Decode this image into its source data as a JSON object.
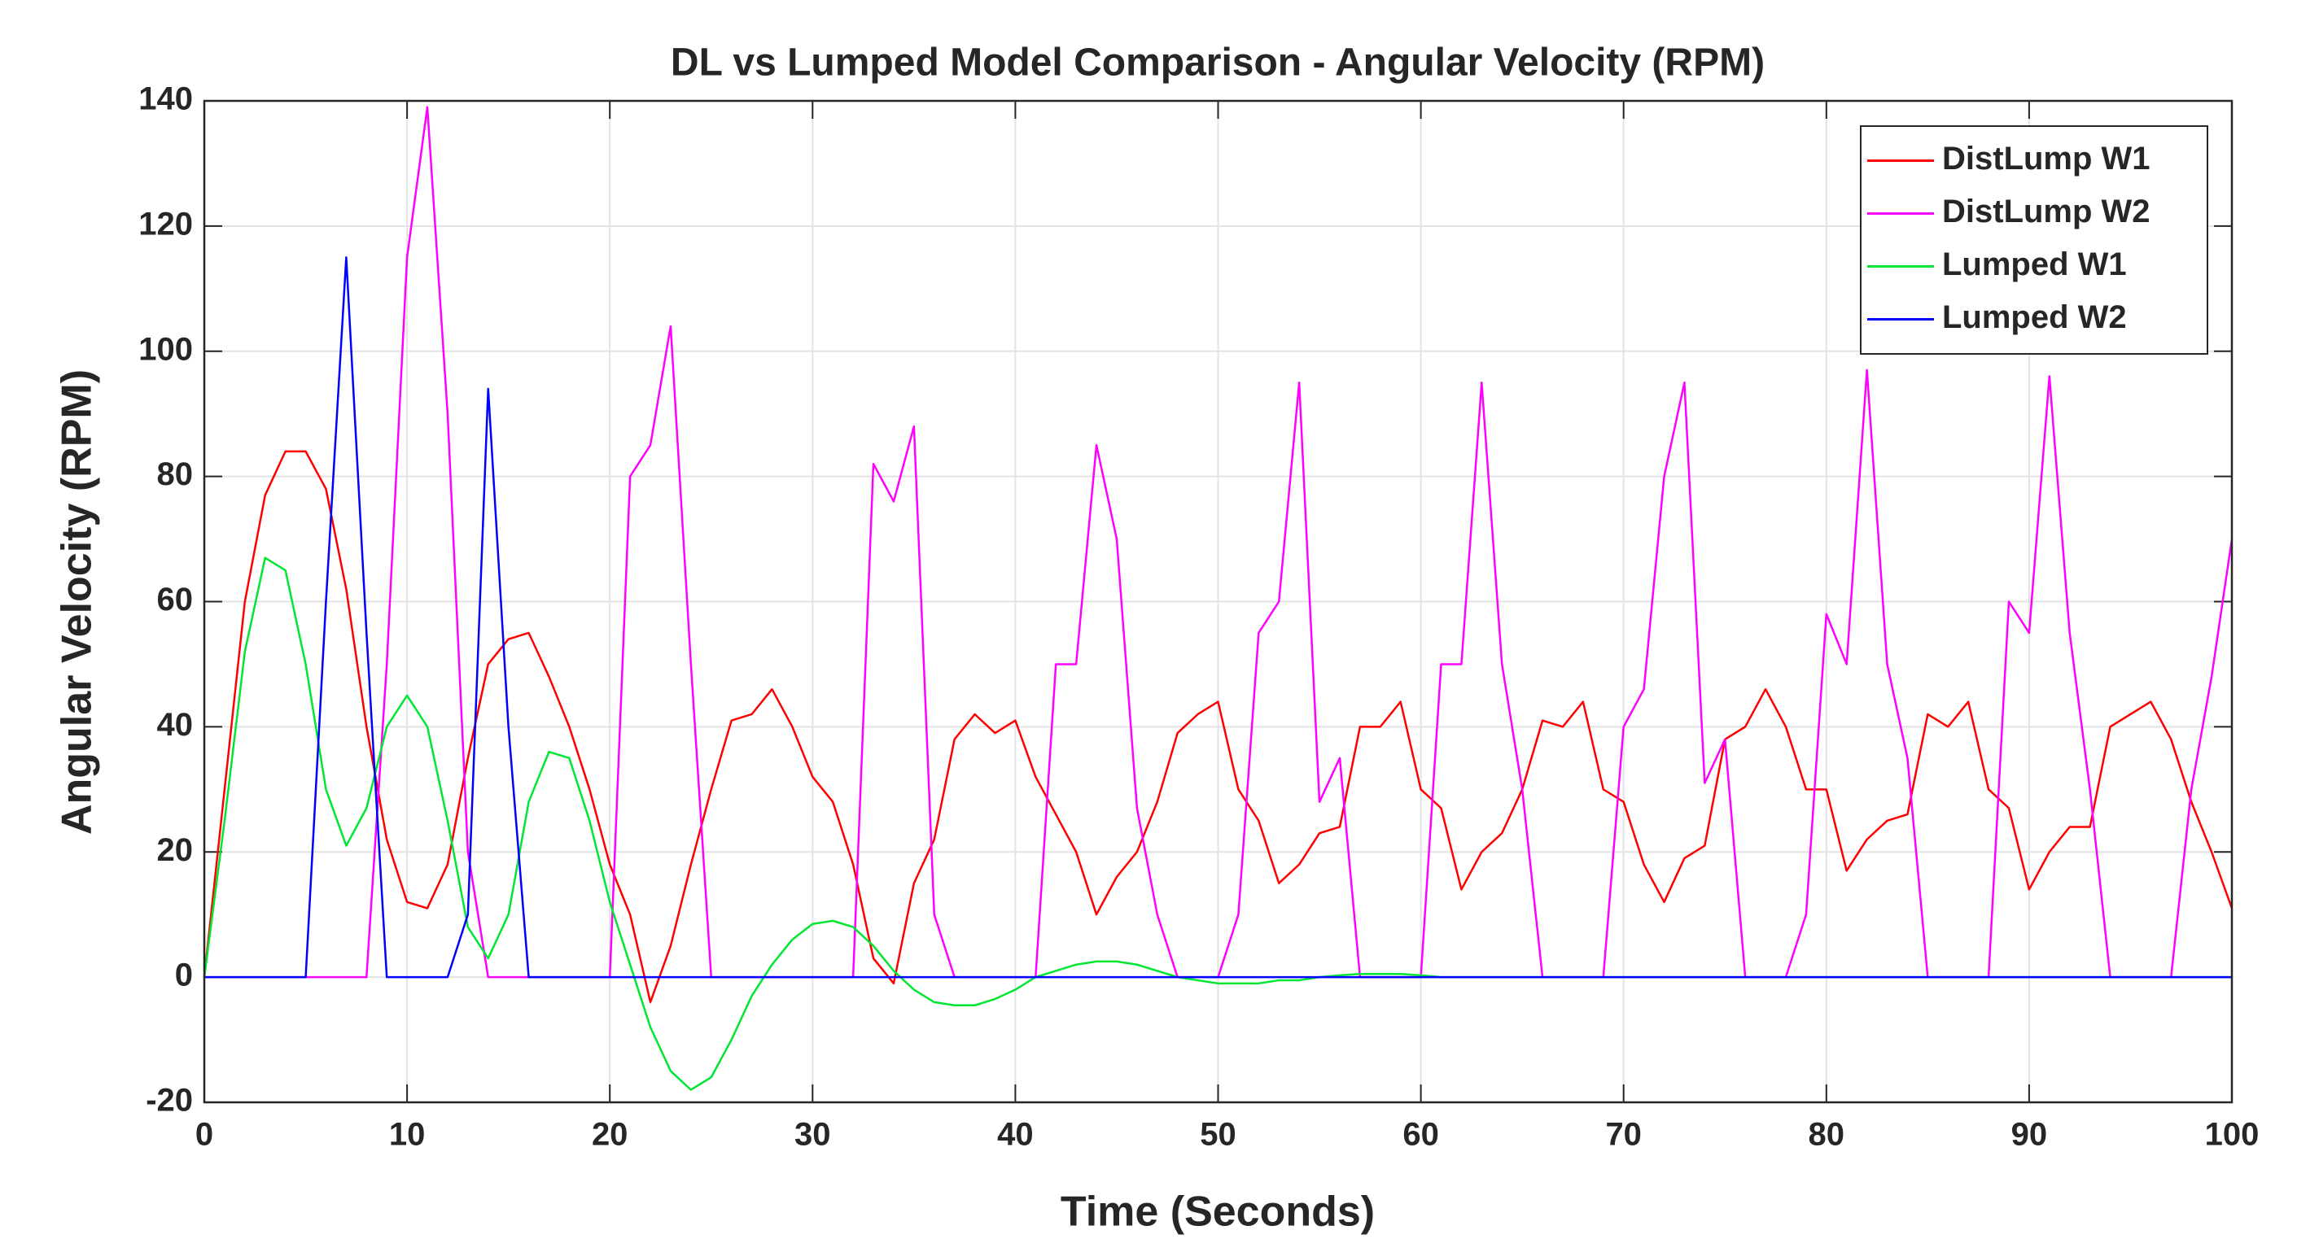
{
  "chart_data": {
    "type": "line",
    "title": "DL vs Lumped Model Comparison - Angular Velocity (RPM)",
    "xlabel": "Time (Seconds)",
    "ylabel": "Angular Velocity (RPM)",
    "x": [
      0,
      1,
      2,
      3,
      4,
      5,
      6,
      7,
      8,
      9,
      10,
      11,
      12,
      13,
      14,
      15,
      16,
      17,
      18,
      19,
      20,
      21,
      22,
      23,
      24,
      25,
      26,
      27,
      28,
      29,
      30,
      31,
      32,
      33,
      34,
      35,
      36,
      37,
      38,
      39,
      40,
      41,
      42,
      43,
      44,
      45,
      46,
      47,
      48,
      49,
      50,
      51,
      52,
      53,
      54,
      55,
      56,
      57,
      58,
      59,
      60,
      61,
      62,
      63,
      64,
      65,
      66,
      67,
      68,
      69,
      70,
      71,
      72,
      73,
      74,
      75,
      76,
      77,
      78,
      79,
      80,
      81,
      82,
      83,
      84,
      85,
      86,
      87,
      88,
      89,
      90,
      91,
      92,
      93,
      94,
      95,
      96,
      97,
      98,
      99,
      100
    ],
    "series": [
      {
        "name": "DistLump W1",
        "color": "#ff0000",
        "values": [
          0,
          30,
          60,
          77,
          84,
          84,
          78,
          62,
          40,
          22,
          12,
          11,
          18,
          35,
          50,
          54,
          55,
          48,
          40,
          30,
          18,
          10,
          -4,
          5,
          18,
          30,
          41,
          42,
          46,
          40,
          32,
          28,
          18,
          3,
          -1,
          15,
          22,
          38,
          42,
          39,
          41,
          32,
          26,
          20,
          10,
          16,
          20,
          28,
          39,
          42,
          44,
          30,
          25,
          15,
          18,
          23,
          24,
          40,
          40,
          44,
          30,
          27,
          14,
          20,
          23,
          30,
          41,
          40,
          44,
          30,
          28,
          18,
          12,
          19,
          21,
          38,
          40,
          46,
          40,
          30,
          30,
          17,
          22,
          25,
          26,
          42,
          40,
          44,
          30,
          27,
          14,
          20,
          24,
          24,
          40,
          42,
          44,
          38,
          28,
          20,
          11
        ]
      },
      {
        "name": "DistLump W2",
        "color": "#ff00ff",
        "values": [
          0,
          0,
          0,
          0,
          0,
          0,
          0,
          0,
          0,
          50,
          115,
          139,
          90,
          20,
          0,
          0,
          0,
          0,
          0,
          0,
          0,
          80,
          85,
          104,
          50,
          0,
          0,
          0,
          0,
          0,
          0,
          0,
          0,
          82,
          76,
          88,
          10,
          0,
          0,
          0,
          0,
          0,
          50,
          50,
          85,
          70,
          27,
          10,
          0,
          0,
          0,
          10,
          55,
          60,
          95,
          28,
          35,
          0,
          0,
          0,
          0,
          50,
          50,
          95,
          50,
          30,
          0,
          0,
          0,
          0,
          40,
          46,
          80,
          95,
          31,
          38,
          0,
          0,
          0,
          10,
          58,
          50,
          97,
          50,
          35,
          0,
          0,
          0,
          0,
          60,
          55,
          96,
          55,
          30,
          0,
          0,
          0,
          0,
          30,
          48,
          70
        ]
      },
      {
        "name": "Lumped W1",
        "color": "#00e633",
        "values": [
          0,
          25,
          52,
          67,
          65,
          50,
          30,
          21,
          27,
          40,
          45,
          40,
          25,
          8,
          3,
          10,
          28,
          36,
          35,
          25,
          12,
          2,
          -8,
          -15,
          -18,
          -16,
          -10,
          -3,
          2,
          6,
          8.5,
          9,
          8,
          5,
          1,
          -2,
          -4,
          -4.5,
          -4.5,
          -3.5,
          -2,
          0,
          1,
          2,
          2.5,
          2.5,
          2,
          1,
          0,
          -0.5,
          -1,
          -1,
          -1,
          -0.5,
          -0.5,
          0,
          0.3,
          0.5,
          0.5,
          0.5,
          0.3,
          0,
          0,
          0,
          0,
          0,
          0,
          0,
          0,
          0,
          0,
          0,
          0,
          0,
          0,
          0,
          0,
          0,
          0,
          0,
          0,
          0,
          0,
          0,
          0,
          0,
          0,
          0,
          0,
          0,
          0,
          0,
          0,
          0,
          0,
          0,
          0,
          0,
          0,
          0,
          0
        ]
      },
      {
        "name": "Lumped W2",
        "color": "#0000ff",
        "values": [
          0,
          0,
          0,
          0,
          0,
          0,
          60,
          115,
          55,
          0,
          0,
          0,
          0,
          10,
          94,
          40,
          0,
          0,
          0,
          0,
          0,
          0,
          0,
          0,
          0,
          0,
          0,
          0,
          0,
          0,
          0,
          0,
          0,
          0,
          0,
          0,
          0,
          0,
          0,
          0,
          0,
          0,
          0,
          0,
          0,
          0,
          0,
          0,
          0,
          0,
          0,
          0,
          0,
          0,
          0,
          0,
          0,
          0,
          0,
          0,
          0,
          0,
          0,
          0,
          0,
          0,
          0,
          0,
          0,
          0,
          0,
          0,
          0,
          0,
          0,
          0,
          0,
          0,
          0,
          0,
          0,
          0,
          0,
          0,
          0,
          0,
          0,
          0,
          0,
          0,
          0,
          0,
          0,
          0,
          0,
          0,
          0,
          0,
          0,
          0,
          0
        ]
      }
    ],
    "xlim": [
      0,
      100
    ],
    "xticks": [
      0,
      10,
      20,
      30,
      40,
      50,
      60,
      70,
      80,
      90,
      100
    ],
    "ylim": [
      -20,
      140
    ],
    "yticks": [
      -20,
      0,
      20,
      40,
      60,
      80,
      100,
      120,
      140
    ],
    "grid": true,
    "legend": "upper right"
  }
}
